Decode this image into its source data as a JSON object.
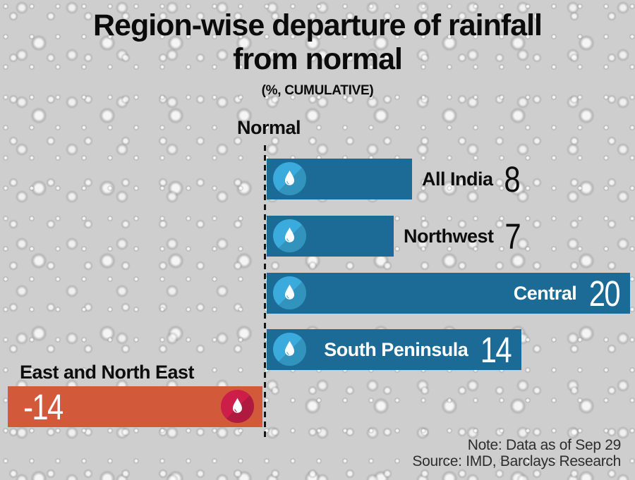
{
  "header": {
    "title_lines": [
      "Region-wise departure of rainfall",
      "from normal"
    ],
    "subtitle": "(%, CUMULATIVE)"
  },
  "axis": {
    "baseline_label": "Normal"
  },
  "footer": {
    "note": "Note: Data as of Sep 29",
    "source": "Source: IMD, Barclays Research"
  },
  "colors": {
    "positive_bar": "#1c6b96",
    "negative_bar": "#d2593a",
    "positive_icon_circle": "#3aabdc",
    "negative_icon_circle": "#cd1e4a",
    "text_dark": "#0d0d0d",
    "text_light": "#ffffff",
    "background": "#cecece"
  },
  "chart_data": {
    "type": "bar",
    "orientation": "horizontal",
    "title": "Region-wise departure of rainfall from normal",
    "subtitle": "(%, CUMULATIVE)",
    "unit": "%",
    "baseline": {
      "label": "Normal",
      "value": 0
    },
    "categories": [
      "All India",
      "Northwest",
      "Central",
      "South Peninsula",
      "East and North East"
    ],
    "values": [
      8,
      7,
      20,
      14,
      -14
    ],
    "xlim": [
      -15,
      20
    ],
    "grid": false,
    "legend": false,
    "series": [
      {
        "label": "All India",
        "value": 8,
        "label_position": "outside-right",
        "bar_color": "#1c6b96",
        "icon": "water-drop",
        "icon_color": "#3aabdc"
      },
      {
        "label": "Northwest",
        "value": 7,
        "label_position": "outside-right",
        "bar_color": "#1c6b96",
        "icon": "water-drop",
        "icon_color": "#3aabdc"
      },
      {
        "label": "Central",
        "value": 20,
        "label_position": "inside-right",
        "bar_color": "#1c6b96",
        "icon": "water-drop",
        "icon_color": "#3aabdc"
      },
      {
        "label": "South Peninsula",
        "value": 14,
        "label_position": "inside-right",
        "bar_color": "#1c6b96",
        "icon": "water-drop",
        "icon_color": "#3aabdc"
      },
      {
        "label": "East and North East",
        "value": -14,
        "label_position": "above-left",
        "bar_color": "#d2593a",
        "icon": "water-drop",
        "icon_color": "#cd1e4a"
      }
    ],
    "note": "Note: Data as of Sep 29",
    "source": "Source: IMD, Barclays Research"
  }
}
